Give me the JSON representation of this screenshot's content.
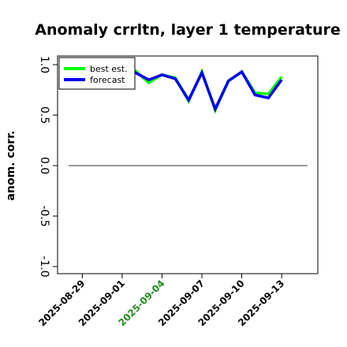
{
  "chart_data": {
    "type": "line",
    "title": "Anomaly crrltn, layer 1 temperature",
    "ylabel": "anom. corr.",
    "xlabel": "",
    "ylim": [
      -1.0,
      1.0
    ],
    "yticks": [
      "-1.0",
      "-0.5",
      "0.0",
      "0.5",
      "1.0"
    ],
    "x": [
      "2025-08-28",
      "2025-08-29",
      "2025-08-30",
      "2025-08-31",
      "2025-09-01",
      "2025-09-02",
      "2025-09-03",
      "2025-09-04",
      "2025-09-05",
      "2025-09-06",
      "2025-09-07",
      "2025-09-08",
      "2025-09-09",
      "2025-09-10",
      "2025-09-11",
      "2025-09-12",
      "2025-09-13"
    ],
    "xtick_labels": [
      "2025-08-29",
      "2025-09-01",
      "2025-09-04",
      "2025-09-07",
      "2025-09-10",
      "2025-09-13"
    ],
    "highlight_tick": "2025-09-04",
    "highlight_color": "#228B22",
    "reference_line": 0.0,
    "grid": false,
    "legend_position": "top-left",
    "series": [
      {
        "name": "best est.",
        "color": "#00ff00",
        "values": [
          0.99,
          0.98,
          0.95,
          0.93,
          0.94,
          0.94,
          0.82,
          0.9,
          0.87,
          0.64,
          0.93,
          0.55,
          0.84,
          0.93,
          0.72,
          0.71,
          0.88
        ]
      },
      {
        "name": "forecast",
        "color": "#0000ee",
        "values": [
          0.99,
          0.98,
          0.95,
          0.93,
          0.93,
          0.92,
          0.85,
          0.9,
          0.86,
          0.65,
          0.92,
          0.56,
          0.84,
          0.93,
          0.7,
          0.67,
          0.85
        ]
      }
    ]
  }
}
